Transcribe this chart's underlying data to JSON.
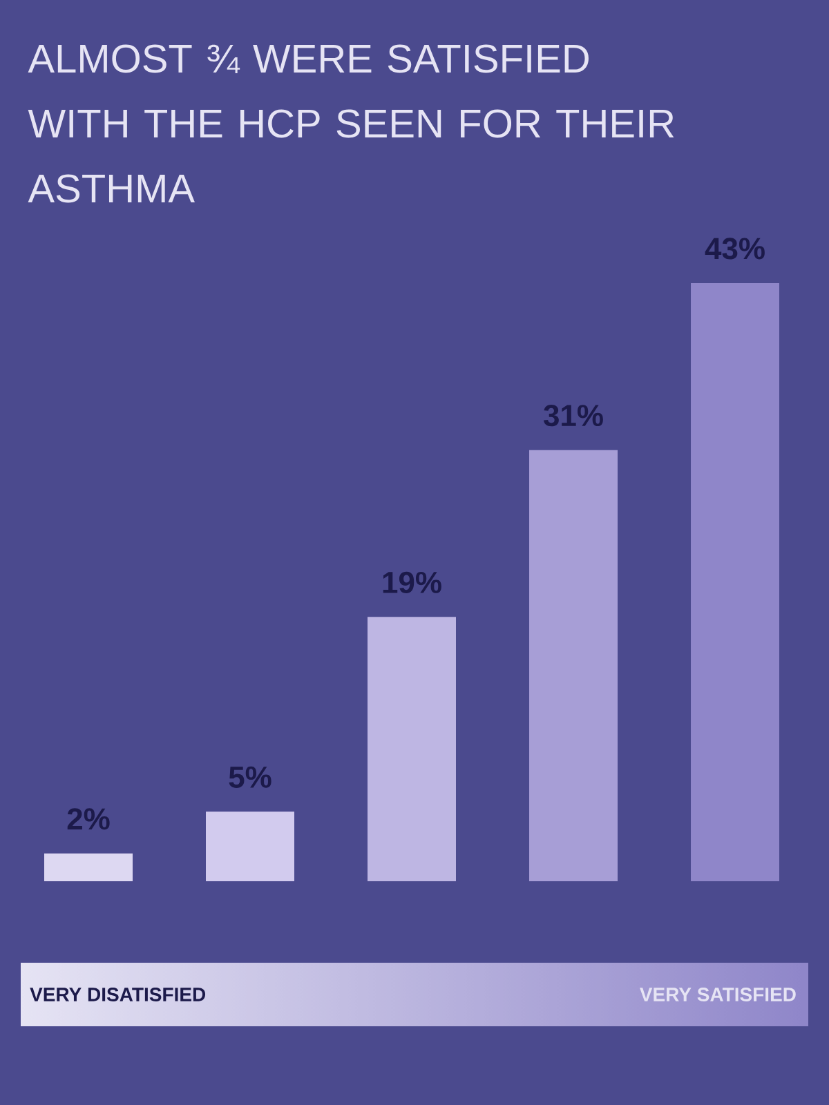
{
  "chart_data": {
    "type": "bar",
    "title": "ALMOST ¾ WERE SATISFIED WITH THE HCP SEEN FOR THEIR ASTHMA",
    "categories": [
      null,
      null,
      null,
      null,
      null
    ],
    "values": [
      2,
      5,
      19,
      31,
      43
    ],
    "colors": [
      "#ddd8f2",
      "#d2cbee",
      "#beb6e3",
      "#a79ed6",
      "#8f86c9"
    ],
    "value_labels": [
      "2%",
      "5%",
      "19%",
      "31%",
      "43%"
    ],
    "annotations": [
      "VERY DISATISFIED",
      "VERY SATISFIED"
    ]
  }
}
